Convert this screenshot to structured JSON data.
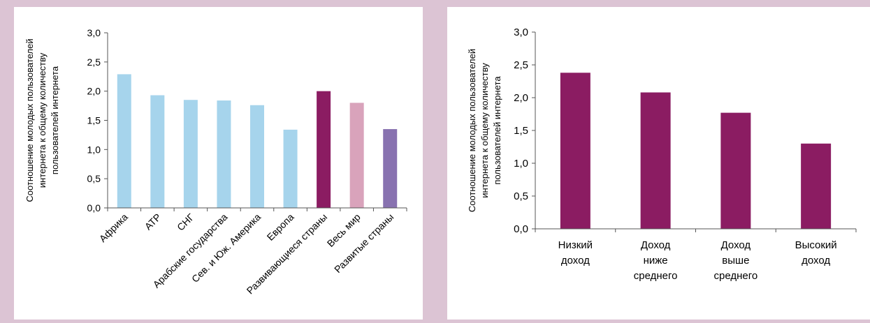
{
  "chart_data": [
    {
      "type": "bar",
      "ylabel_lines": [
        "Соотношение молодых пользователей",
        "интернета к общему количеству",
        "пользователей интернета"
      ],
      "ylim": [
        0,
        3.0
      ],
      "y_ticks": [
        "0,0",
        "0,5",
        "1,0",
        "1,5",
        "2,0",
        "2,5",
        "3,0"
      ],
      "categories": [
        "Африка",
        "АТР",
        "СНГ",
        "Арабские государства",
        "Сев. и Юж. Америка",
        "Европа",
        "Развивающиеся страны",
        "Весь мир",
        "Развитые страны"
      ],
      "values": [
        2.29,
        1.93,
        1.85,
        1.84,
        1.76,
        1.34,
        2.0,
        1.8,
        1.35
      ],
      "colors": [
        "#a6d4ec",
        "#a6d4ec",
        "#a6d4ec",
        "#a6d4ec",
        "#a6d4ec",
        "#a6d4ec",
        "#8b1c62",
        "#d9a3bb",
        "#8872b0"
      ],
      "grid": false
    },
    {
      "type": "bar",
      "ylabel_lines": [
        "Соотношение молодых пользователей",
        "интернета к общему количеству",
        "пользователей интернета"
      ],
      "ylim": [
        0,
        3.0
      ],
      "y_ticks": [
        "0,0",
        "0,5",
        "1,0",
        "1,5",
        "2,0",
        "2,5",
        "3,0"
      ],
      "categories": [
        [
          "Низкий",
          "доход"
        ],
        [
          "Доход",
          "ниже",
          "среднего"
        ],
        [
          "Доход",
          "выше",
          "среднего"
        ],
        [
          "Высокий",
          "доход"
        ]
      ],
      "values": [
        2.38,
        2.08,
        1.77,
        1.3
      ],
      "colors": [
        "#8b1c62",
        "#8b1c62",
        "#8b1c62",
        "#8b1c62"
      ],
      "grid": false
    }
  ]
}
